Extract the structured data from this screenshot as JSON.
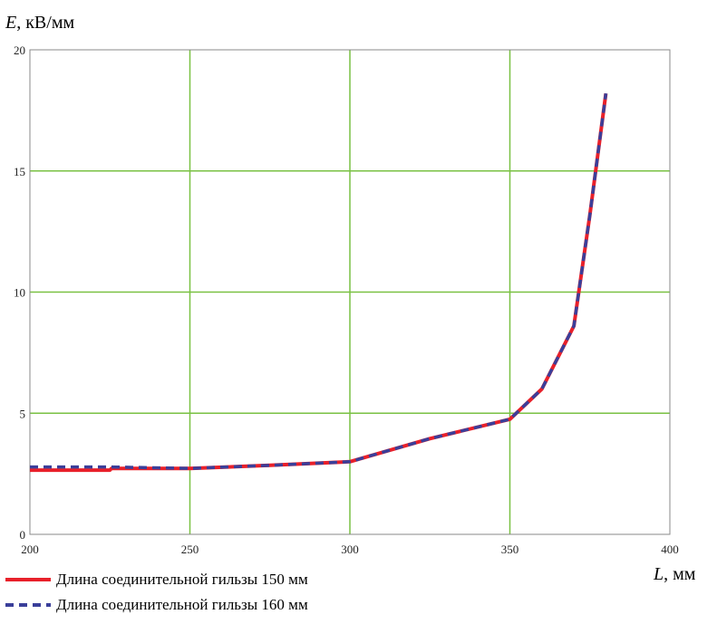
{
  "chart_data": {
    "type": "line",
    "ylabel_var": "E",
    "ylabel_unit": ", кВ/мм",
    "xlabel_var": "L",
    "xlabel_unit": ", мм",
    "xlim": [
      200,
      400
    ],
    "ylim": [
      0,
      20
    ],
    "xticks": [
      200,
      250,
      300,
      350,
      400
    ],
    "yticks": [
      0,
      5,
      10,
      15,
      20
    ],
    "grid": true,
    "grid_color": "#7ac143",
    "legend_position": "bottom-left",
    "series": [
      {
        "name": "Длина соединительной гильзы 150 мм",
        "color": "#e8202a",
        "style": "solid",
        "x": [
          200,
          225,
          225.5,
          250,
          275,
          300,
          325,
          350,
          360,
          370,
          375,
          380
        ],
        "y": [
          2.65,
          2.65,
          2.72,
          2.72,
          2.85,
          3.0,
          3.95,
          4.75,
          6.0,
          8.6,
          13.2,
          18.2
        ]
      },
      {
        "name": "Длина соединительной гильзы 160 мм",
        "color": "#3a3f9a",
        "style": "dashed",
        "x": [
          200,
          225,
          250,
          275,
          300,
          325,
          350,
          360,
          370,
          375,
          380
        ],
        "y": [
          2.78,
          2.78,
          2.72,
          2.85,
          3.0,
          3.95,
          4.75,
          6.0,
          8.6,
          13.2,
          18.2
        ]
      }
    ]
  }
}
